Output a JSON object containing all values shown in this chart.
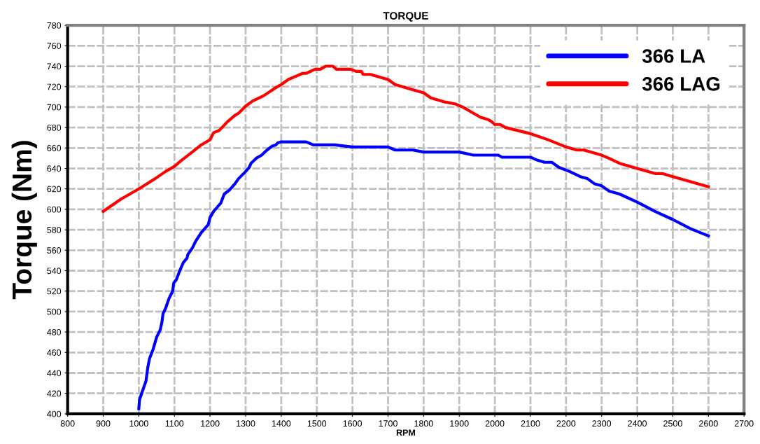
{
  "chart_data": {
    "type": "line",
    "title": "TORQUE",
    "xlabel": "RPM",
    "ylabel": "Torque (Nm)",
    "xlim": [
      800,
      2700
    ],
    "xticks": [
      800,
      900,
      1000,
      1100,
      1200,
      1300,
      1400,
      1500,
      1600,
      1700,
      1800,
      1900,
      2000,
      2100,
      2200,
      2300,
      2400,
      2500,
      2600,
      2700
    ],
    "ylim": [
      400,
      780
    ],
    "yticks": [
      400,
      420,
      440,
      460,
      480,
      500,
      520,
      540,
      560,
      580,
      600,
      620,
      640,
      660,
      680,
      700,
      720,
      740,
      760,
      780
    ],
    "grid": true,
    "legend": "top right",
    "line_style": "solid",
    "marker": "none",
    "series": [
      {
        "name": "366 LA",
        "color": "#0000ff",
        "x": [
          1000,
          1002,
          1010,
          1020,
          1025,
          1030,
          1040,
          1050,
          1060,
          1065,
          1068,
          1075,
          1085,
          1095,
          1098,
          1105,
          1115,
          1125,
          1135,
          1138,
          1150,
          1160,
          1175,
          1190,
          1195,
          1200,
          1210,
          1220,
          1230,
          1240,
          1255,
          1270,
          1280,
          1300,
          1310,
          1315,
          1330,
          1345,
          1360,
          1375,
          1385,
          1390,
          1400,
          1470,
          1490,
          1550,
          1600,
          1700,
          1720,
          1770,
          1800,
          1900,
          1940,
          2010,
          2020,
          2100,
          2120,
          2140,
          2160,
          2180,
          2210,
          2240,
          2260,
          2280,
          2300,
          2320,
          2350,
          2400,
          2450,
          2500,
          2550,
          2600
        ],
        "values": [
          405,
          414,
          422,
          432,
          445,
          454,
          463,
          475,
          482,
          490,
          498,
          503,
          513,
          520,
          528,
          531,
          540,
          548,
          552,
          556,
          562,
          569,
          577,
          583,
          585,
          592,
          598,
          602,
          606,
          615,
          619,
          625,
          630,
          637,
          641,
          645,
          650,
          653,
          658,
          662,
          663,
          665,
          666,
          666,
          663,
          663,
          661,
          661,
          658,
          658,
          656,
          656,
          653,
          653,
          651,
          651,
          648,
          646,
          646,
          641,
          637,
          632,
          630,
          625,
          623,
          618,
          615,
          607,
          598,
          590,
          581,
          574
        ]
      },
      {
        "name": "366 LAG",
        "color": "#ff0000",
        "x": [
          900,
          950,
          1000,
          1050,
          1075,
          1100,
          1120,
          1150,
          1175,
          1200,
          1210,
          1225,
          1250,
          1270,
          1280,
          1300,
          1320,
          1350,
          1380,
          1400,
          1420,
          1440,
          1460,
          1470,
          1495,
          1510,
          1525,
          1545,
          1555,
          1595,
          1610,
          1625,
          1630,
          1650,
          1700,
          1720,
          1760,
          1800,
          1820,
          1860,
          1890,
          1910,
          1940,
          1960,
          1980,
          1990,
          2000,
          2015,
          2030,
          2100,
          2150,
          2200,
          2230,
          2250,
          2300,
          2320,
          2350,
          2400,
          2450,
          2470,
          2500,
          2550,
          2600
        ],
        "values": [
          598,
          610,
          620,
          631,
          637,
          642,
          648,
          656,
          663,
          668,
          675,
          677,
          686,
          692,
          694,
          701,
          706,
          711,
          718,
          722,
          727,
          730,
          733,
          733,
          737,
          737,
          740,
          740,
          737,
          737,
          735,
          735,
          732,
          732,
          727,
          722,
          718,
          714,
          709,
          705,
          703,
          700,
          694,
          690,
          688,
          686,
          683,
          683,
          680,
          674,
          668,
          661,
          658,
          658,
          653,
          650,
          645,
          640,
          635,
          635,
          632,
          627,
          622
        ]
      }
    ]
  }
}
